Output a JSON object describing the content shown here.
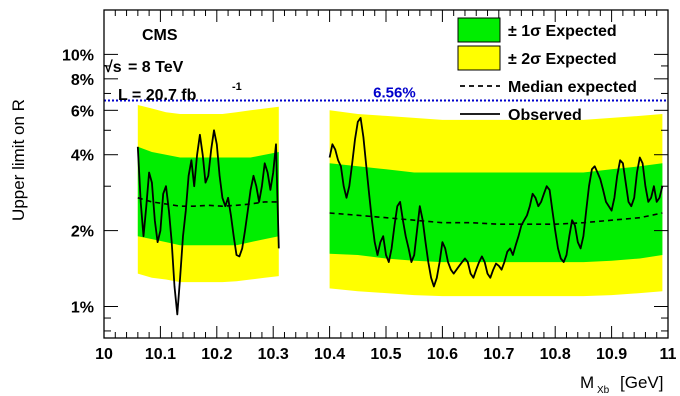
{
  "chart_data": {
    "type": "line",
    "title": "",
    "xlabel": "M",
    "xlabel_sub": "Xb",
    "xlabel_unit": "[GeV]",
    "ylabel": "Upper limit on R",
    "xlim": [
      10.0,
      11.0
    ],
    "ylim": [
      0.0075,
      0.15
    ],
    "yscale": "log",
    "xticks": [
      "10",
      "10.1",
      "10.2",
      "10.3",
      "10.4",
      "10.5",
      "10.6",
      "10.7",
      "10.8",
      "10.9",
      "11"
    ],
    "yticks": [
      {
        "value": 0.01,
        "label": "1%"
      },
      {
        "value": 0.02,
        "label": "2%"
      },
      {
        "value": 0.04,
        "label": "4%"
      },
      {
        "value": 0.06,
        "label": "6%"
      },
      {
        "value": 0.08,
        "label": "8%"
      },
      {
        "value": 0.1,
        "label": "10%"
      }
    ],
    "annotations": {
      "experiment": "CMS",
      "energy": "= 8 TeV",
      "energy_prefix": "√s",
      "lumi": "L = 20.7 fb",
      "lumi_exp": "-1"
    },
    "reference_line": {
      "value": 0.0656,
      "label": "6.56%",
      "color": "#0000cc"
    },
    "legend": {
      "placement": "top-right",
      "items": [
        {
          "label": "± 1σ Expected",
          "kind": "band",
          "color": "#00ee00"
        },
        {
          "label": "± 2σ Expected",
          "kind": "band",
          "color": "#ffff00"
        },
        {
          "label": "Median expected",
          "kind": "dashed"
        },
        {
          "label": "Observed",
          "kind": "solid"
        }
      ]
    },
    "colors": {
      "band_1sigma": "#00ee00",
      "band_2sigma": "#ffff00",
      "ref_line": "#0000cc"
    },
    "segments": [
      {
        "x": [
          10.06,
          10.085,
          10.11,
          10.135,
          10.16,
          10.185,
          10.21,
          10.235,
          10.26,
          10.285,
          10.31
        ],
        "band2_up": [
          0.063,
          0.061,
          0.059,
          0.058,
          0.058,
          0.058,
          0.058,
          0.059,
          0.06,
          0.061,
          0.062
        ],
        "band1_up": [
          0.043,
          0.041,
          0.04,
          0.039,
          0.039,
          0.039,
          0.039,
          0.039,
          0.039,
          0.04,
          0.041
        ],
        "median": [
          0.027,
          0.026,
          0.0255,
          0.025,
          0.025,
          0.0252,
          0.025,
          0.0252,
          0.0255,
          0.026,
          0.026
        ],
        "band1_dn": [
          0.019,
          0.0185,
          0.018,
          0.0175,
          0.0175,
          0.0175,
          0.0175,
          0.0175,
          0.018,
          0.0185,
          0.019
        ],
        "band2_dn": [
          0.0135,
          0.013,
          0.0128,
          0.0125,
          0.0125,
          0.0125,
          0.0125,
          0.0126,
          0.0128,
          0.013,
          0.0132
        ]
      },
      {
        "x": [
          10.4,
          10.45,
          10.5,
          10.55,
          10.6,
          10.65,
          10.7,
          10.75,
          10.8,
          10.85,
          10.9,
          10.95,
          10.99
        ],
        "band2_up": [
          0.06,
          0.058,
          0.057,
          0.056,
          0.055,
          0.055,
          0.055,
          0.055,
          0.055,
          0.055,
          0.056,
          0.057,
          0.058
        ],
        "band1_up": [
          0.037,
          0.036,
          0.035,
          0.034,
          0.034,
          0.034,
          0.034,
          0.034,
          0.034,
          0.034,
          0.035,
          0.036,
          0.037
        ],
        "median": [
          0.0235,
          0.023,
          0.0225,
          0.022,
          0.0215,
          0.0215,
          0.0212,
          0.0212,
          0.0212,
          0.0215,
          0.022,
          0.0225,
          0.0235
        ],
        "band1_dn": [
          0.0162,
          0.016,
          0.0155,
          0.0152,
          0.015,
          0.015,
          0.015,
          0.015,
          0.015,
          0.015,
          0.0152,
          0.0155,
          0.016
        ],
        "band2_dn": [
          0.0118,
          0.0115,
          0.0113,
          0.0111,
          0.011,
          0.011,
          0.011,
          0.011,
          0.011,
          0.011,
          0.0111,
          0.0113,
          0.0115
        ]
      }
    ],
    "observed": [
      [
        [
          10.06,
          0.043
        ],
        [
          10.065,
          0.026
        ],
        [
          10.07,
          0.019
        ],
        [
          10.075,
          0.025
        ],
        [
          10.08,
          0.034
        ],
        [
          10.085,
          0.031
        ],
        [
          10.09,
          0.022
        ],
        [
          10.095,
          0.018
        ],
        [
          10.1,
          0.02
        ],
        [
          10.105,
          0.028
        ],
        [
          10.11,
          0.03
        ],
        [
          10.115,
          0.024
        ],
        [
          10.12,
          0.018
        ],
        [
          10.125,
          0.012
        ],
        [
          10.13,
          0.0093
        ],
        [
          10.135,
          0.013
        ],
        [
          10.14,
          0.019
        ],
        [
          10.145,
          0.024
        ],
        [
          10.15,
          0.033
        ],
        [
          10.155,
          0.038
        ],
        [
          10.16,
          0.03
        ],
        [
          10.165,
          0.04
        ],
        [
          10.17,
          0.048
        ],
        [
          10.175,
          0.04
        ],
        [
          10.18,
          0.031
        ],
        [
          10.185,
          0.033
        ],
        [
          10.19,
          0.042
        ],
        [
          10.195,
          0.05
        ],
        [
          10.2,
          0.044
        ],
        [
          10.205,
          0.033
        ],
        [
          10.21,
          0.027
        ],
        [
          10.215,
          0.025
        ],
        [
          10.22,
          0.027
        ],
        [
          10.225,
          0.023
        ],
        [
          10.23,
          0.019
        ],
        [
          10.235,
          0.016
        ],
        [
          10.24,
          0.0158
        ],
        [
          10.245,
          0.017
        ],
        [
          10.25,
          0.02
        ],
        [
          10.255,
          0.024
        ],
        [
          10.26,
          0.029
        ],
        [
          10.265,
          0.033
        ],
        [
          10.27,
          0.03
        ],
        [
          10.275,
          0.026
        ],
        [
          10.28,
          0.03
        ],
        [
          10.285,
          0.037
        ],
        [
          10.29,
          0.034
        ],
        [
          10.295,
          0.029
        ],
        [
          10.3,
          0.034
        ],
        [
          10.305,
          0.044
        ],
        [
          10.31,
          0.017
        ]
      ],
      [
        [
          10.4,
          0.039
        ],
        [
          10.405,
          0.044
        ],
        [
          10.41,
          0.042
        ],
        [
          10.415,
          0.038
        ],
        [
          10.42,
          0.036
        ],
        [
          10.425,
          0.03
        ],
        [
          10.43,
          0.027
        ],
        [
          10.435,
          0.03
        ],
        [
          10.44,
          0.037
        ],
        [
          10.445,
          0.046
        ],
        [
          10.45,
          0.054
        ],
        [
          10.455,
          0.056
        ],
        [
          10.46,
          0.047
        ],
        [
          10.465,
          0.036
        ],
        [
          10.47,
          0.028
        ],
        [
          10.475,
          0.022
        ],
        [
          10.48,
          0.018
        ],
        [
          10.485,
          0.016
        ],
        [
          10.49,
          0.018
        ],
        [
          10.495,
          0.019
        ],
        [
          10.5,
          0.016
        ],
        [
          10.505,
          0.015
        ],
        [
          10.51,
          0.017
        ],
        [
          10.515,
          0.021
        ],
        [
          10.52,
          0.025
        ],
        [
          10.525,
          0.026
        ],
        [
          10.53,
          0.022
        ],
        [
          10.535,
          0.019
        ],
        [
          10.54,
          0.017
        ],
        [
          10.545,
          0.015
        ],
        [
          10.55,
          0.016
        ],
        [
          10.555,
          0.02
        ],
        [
          10.56,
          0.025
        ],
        [
          10.565,
          0.022
        ],
        [
          10.57,
          0.018
        ],
        [
          10.575,
          0.015
        ],
        [
          10.58,
          0.013
        ],
        [
          10.585,
          0.012
        ],
        [
          10.59,
          0.013
        ],
        [
          10.595,
          0.015
        ],
        [
          10.6,
          0.018
        ],
        [
          10.605,
          0.017
        ],
        [
          10.61,
          0.015
        ],
        [
          10.615,
          0.014
        ],
        [
          10.62,
          0.0135
        ],
        [
          10.625,
          0.014
        ],
        [
          10.63,
          0.0145
        ],
        [
          10.635,
          0.015
        ],
        [
          10.64,
          0.0155
        ],
        [
          10.645,
          0.015
        ],
        [
          10.65,
          0.0135
        ],
        [
          10.655,
          0.013
        ],
        [
          10.66,
          0.014
        ],
        [
          10.665,
          0.015
        ],
        [
          10.67,
          0.0158
        ],
        [
          10.675,
          0.015
        ],
        [
          10.68,
          0.0135
        ],
        [
          10.685,
          0.013
        ],
        [
          10.69,
          0.014
        ],
        [
          10.695,
          0.0148
        ],
        [
          10.7,
          0.0145
        ],
        [
          10.705,
          0.014
        ],
        [
          10.71,
          0.015
        ],
        [
          10.715,
          0.0165
        ],
        [
          10.72,
          0.017
        ],
        [
          10.725,
          0.016
        ],
        [
          10.73,
          0.0175
        ],
        [
          10.735,
          0.019
        ],
        [
          10.74,
          0.021
        ],
        [
          10.745,
          0.022
        ],
        [
          10.75,
          0.023
        ],
        [
          10.755,
          0.025
        ],
        [
          10.76,
          0.028
        ],
        [
          10.765,
          0.027
        ],
        [
          10.77,
          0.025
        ],
        [
          10.775,
          0.026
        ],
        [
          10.78,
          0.028
        ],
        [
          10.785,
          0.03
        ],
        [
          10.79,
          0.029
        ],
        [
          10.795,
          0.024
        ],
        [
          10.8,
          0.02
        ],
        [
          10.805,
          0.017
        ],
        [
          10.81,
          0.0155
        ],
        [
          10.815,
          0.015
        ],
        [
          10.82,
          0.016
        ],
        [
          10.825,
          0.019
        ],
        [
          10.83,
          0.022
        ],
        [
          10.835,
          0.021
        ],
        [
          10.84,
          0.018
        ],
        [
          10.845,
          0.017
        ],
        [
          10.85,
          0.019
        ],
        [
          10.855,
          0.024
        ],
        [
          10.86,
          0.03
        ],
        [
          10.865,
          0.035
        ],
        [
          10.87,
          0.036
        ],
        [
          10.875,
          0.034
        ],
        [
          10.88,
          0.032
        ],
        [
          10.885,
          0.029
        ],
        [
          10.89,
          0.026
        ],
        [
          10.895,
          0.025
        ],
        [
          10.9,
          0.024
        ],
        [
          10.905,
          0.027
        ],
        [
          10.91,
          0.033
        ],
        [
          10.915,
          0.038
        ],
        [
          10.92,
          0.037
        ],
        [
          10.925,
          0.031
        ],
        [
          10.93,
          0.026
        ],
        [
          10.935,
          0.025
        ],
        [
          10.94,
          0.027
        ],
        [
          10.945,
          0.034
        ],
        [
          10.95,
          0.039
        ],
        [
          10.955,
          0.037
        ],
        [
          10.96,
          0.03
        ],
        [
          10.965,
          0.026
        ],
        [
          10.97,
          0.027
        ],
        [
          10.975,
          0.03
        ],
        [
          10.98,
          0.026
        ],
        [
          10.985,
          0.027
        ],
        [
          10.99,
          0.03
        ]
      ]
    ]
  }
}
